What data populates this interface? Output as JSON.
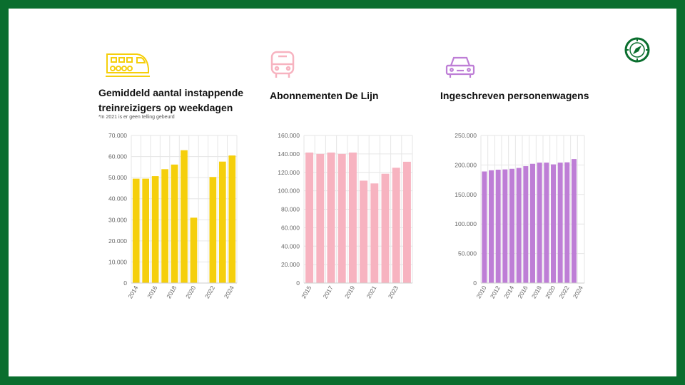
{
  "colors": {
    "frame": "#0a6e2e",
    "train": "#f5cf0c",
    "bus": "#f7b3c0",
    "car": "#be7ed6",
    "grid": "#e6e6e6",
    "axis_text": "#666666"
  },
  "icons": {
    "corner": "compass-icon",
    "panel1": "train-icon",
    "panel2": "bus-icon",
    "panel3": "car-icon"
  },
  "panels": [
    {
      "title": "Gemiddeld aantal instappende\ntreinreizigers op weekdagen",
      "note": "*In 2021 is er geen telling gebeurd"
    },
    {
      "title": "Abonnementen De Lijn"
    },
    {
      "title": "Ingeschreven personenwagens"
    }
  ],
  "chart_data": [
    {
      "type": "bar",
      "categories": [
        "2014",
        "2015",
        "2016",
        "2017",
        "2018",
        "2019",
        "2020",
        "2021",
        "2022",
        "2023",
        "2024"
      ],
      "values": [
        49500,
        49500,
        50700,
        54000,
        56200,
        63000,
        31000,
        null,
        50300,
        57600,
        60500
      ],
      "x_tick_labels": [
        "2014",
        "2016",
        "2018",
        "2020",
        "2022",
        "2024"
      ],
      "y_tick_labels": [
        "0",
        "10.000",
        "20.000",
        "30.000",
        "40.000",
        "50.000",
        "60.000",
        "70.000"
      ],
      "ylim": [
        0,
        70000
      ],
      "grid": true
    },
    {
      "type": "bar",
      "categories": [
        "2015",
        "2016",
        "2017",
        "2018",
        "2019",
        "2020",
        "2021",
        "2022",
        "2023",
        "2024"
      ],
      "values": [
        141500,
        140000,
        141500,
        140000,
        141500,
        111000,
        108000,
        118500,
        125000,
        131500
      ],
      "x_tick_labels": [
        "2015",
        "2017",
        "2019",
        "2021",
        "2023"
      ],
      "y_tick_labels": [
        "0",
        "20.000",
        "40.000",
        "60.000",
        "80.000",
        "100.000",
        "120.000",
        "140.000",
        "160.000"
      ],
      "ylim": [
        0,
        160000
      ],
      "grid": true
    },
    {
      "type": "bar",
      "categories": [
        "2010",
        "2011",
        "2012",
        "2013",
        "2014",
        "2015",
        "2016",
        "2017",
        "2018",
        "2019",
        "2020",
        "2021",
        "2022",
        "2023",
        "2024"
      ],
      "values": [
        189000,
        191000,
        192000,
        192500,
        193500,
        195000,
        198000,
        202000,
        204000,
        204000,
        201000,
        204000,
        204500,
        210000,
        null
      ],
      "x_tick_labels": [
        "2010",
        "2012",
        "2014",
        "2016",
        "2018",
        "2020",
        "2022",
        "2024"
      ],
      "y_tick_labels": [
        "0",
        "50.000",
        "100.000",
        "150.000",
        "200.000",
        "250.000"
      ],
      "ylim": [
        0,
        250000
      ],
      "grid": true
    }
  ]
}
